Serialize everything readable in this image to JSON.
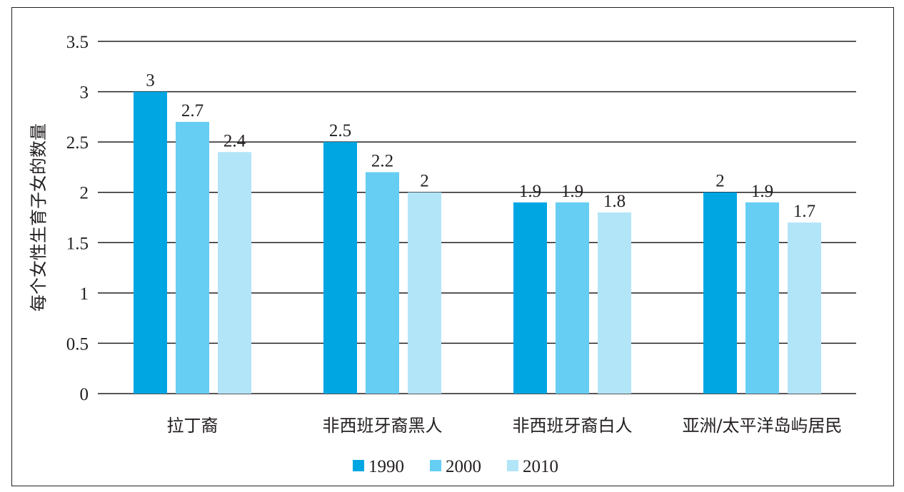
{
  "chart_data": {
    "type": "bar",
    "categories": [
      "拉丁裔",
      "非西班牙裔黑人",
      "非西班牙裔白人",
      "亚洲/太平洋岛屿居民"
    ],
    "series": [
      {
        "name": "1990",
        "color": "#00a6e2",
        "values": [
          3,
          2.5,
          1.9,
          2
        ]
      },
      {
        "name": "2000",
        "color": "#66cdf3",
        "values": [
          2.7,
          2.2,
          1.9,
          1.9
        ]
      },
      {
        "name": "2010",
        "color": "#b3e5f8",
        "values": [
          2.4,
          2,
          1.8,
          1.7
        ]
      }
    ],
    "title": "",
    "xlabel": "",
    "ylabel": "每个女性生育子女的数量",
    "ylim": [
      0,
      3.5
    ],
    "yticks": [
      "0",
      "0.5",
      "1",
      "1.5",
      "2",
      "2.5",
      "3",
      "3.5"
    ],
    "grid": true,
    "legend_position": "bottom-center",
    "data_labels": true
  }
}
